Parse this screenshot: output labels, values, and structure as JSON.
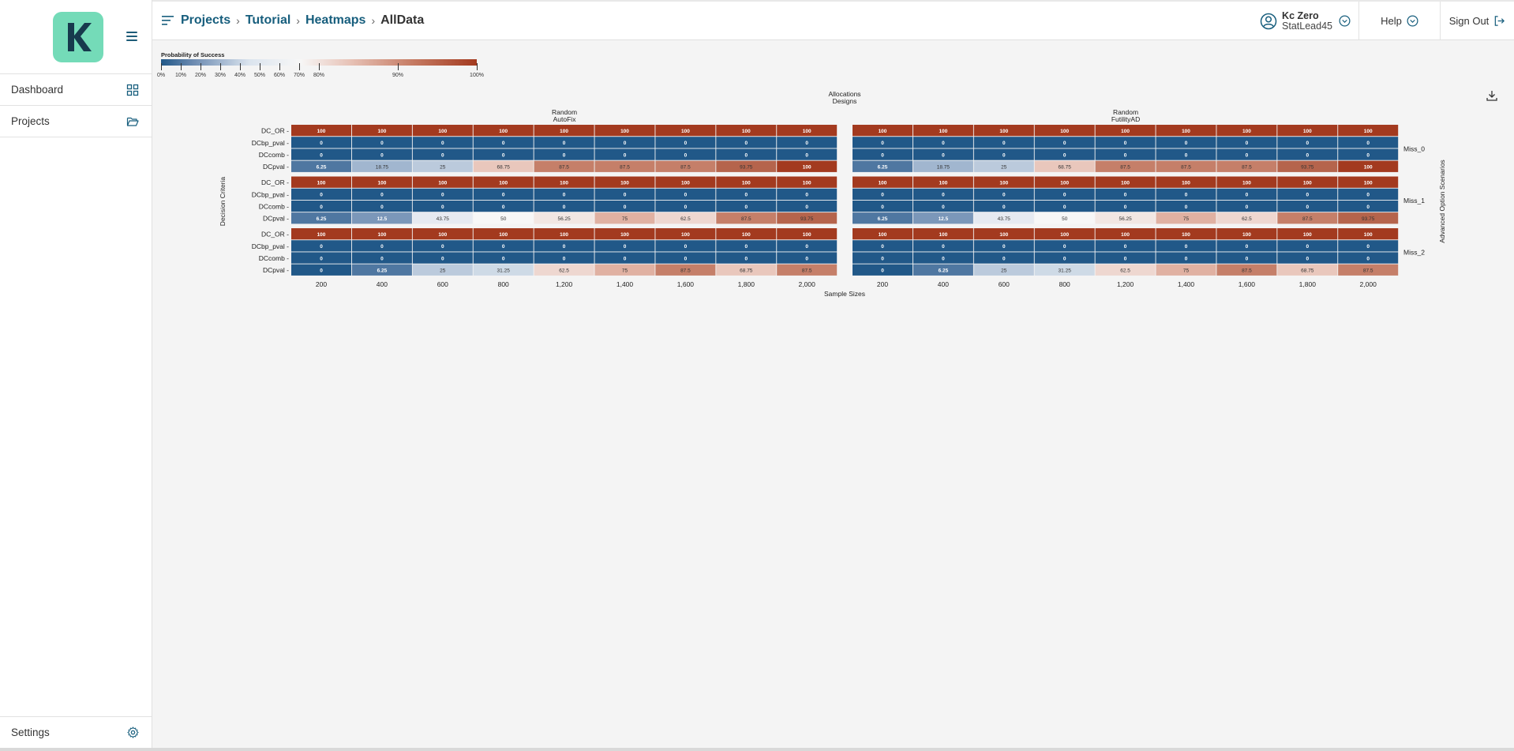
{
  "app": {
    "logo_letter": "K",
    "brand_color": "#74dbb8",
    "accent_color": "#175e7d"
  },
  "sidebar": {
    "items": [
      {
        "label": "Dashboard",
        "icon": "grid-icon"
      },
      {
        "label": "Projects",
        "icon": "folder-open-icon"
      }
    ],
    "settings_label": "Settings"
  },
  "header": {
    "breadcrumb": [
      "Projects",
      "Tutorial",
      "Heatmaps",
      "AllData"
    ],
    "user_name": "Kc Zero",
    "user_role": "StatLead45",
    "help_label": "Help",
    "signout_label": "Sign Out"
  },
  "chart_data": {
    "type": "heatmap",
    "legend": {
      "title": "Probability of Success",
      "ticks": [
        "0%",
        "10%",
        "20%",
        "30%",
        "40%",
        "50%",
        "60%",
        "70%",
        "80%",
        "90%",
        "100%"
      ],
      "colors": {
        "low": "#215888",
        "mid": "#f7f7f7",
        "high": "#a33a1f"
      }
    },
    "top_title": [
      "Allocations",
      "Designs"
    ],
    "panels": [
      {
        "allocation": "Random",
        "design": "AutoFix"
      },
      {
        "allocation": "Random",
        "design": "FutilityAD"
      }
    ],
    "x_label": "Sample Sizes",
    "x": [
      "200",
      "400",
      "600",
      "800",
      "1,200",
      "1,400",
      "1,600",
      "1,800",
      "2,000"
    ],
    "y_label": "Decision Criteria",
    "rows": [
      "DC_OR",
      "DCbp_pval",
      "DCcomb",
      "DCpval"
    ],
    "facet_label": "Advanced Option Scenarios",
    "facets": [
      {
        "name": "Miss_0",
        "values": [
          [
            [
              100,
              100,
              100,
              100,
              100,
              100,
              100,
              100,
              100
            ],
            [
              0,
              0,
              0,
              0,
              0,
              0,
              0,
              0,
              0
            ],
            [
              0,
              0,
              0,
              0,
              0,
              0,
              0,
              0,
              0
            ],
            [
              6.25,
              18.75,
              25,
              68.75,
              87.5,
              87.5,
              87.5,
              93.75,
              100
            ]
          ],
          [
            [
              100,
              100,
              100,
              100,
              100,
              100,
              100,
              100,
              100
            ],
            [
              0,
              0,
              0,
              0,
              0,
              0,
              0,
              0,
              0
            ],
            [
              0,
              0,
              0,
              0,
              0,
              0,
              0,
              0,
              0
            ],
            [
              6.25,
              18.75,
              25,
              68.75,
              87.5,
              87.5,
              87.5,
              93.75,
              100
            ]
          ]
        ]
      },
      {
        "name": "Miss_1",
        "values": [
          [
            [
              100,
              100,
              100,
              100,
              100,
              100,
              100,
              100,
              100
            ],
            [
              0,
              0,
              0,
              0,
              0,
              0,
              0,
              0,
              0
            ],
            [
              0,
              0,
              0,
              0,
              0,
              0,
              0,
              0,
              0
            ],
            [
              6.25,
              12.5,
              43.75,
              50,
              56.25,
              75,
              62.5,
              87.5,
              93.75
            ]
          ],
          [
            [
              100,
              100,
              100,
              100,
              100,
              100,
              100,
              100,
              100
            ],
            [
              0,
              0,
              0,
              0,
              0,
              0,
              0,
              0,
              0
            ],
            [
              0,
              0,
              0,
              0,
              0,
              0,
              0,
              0,
              0
            ],
            [
              6.25,
              12.5,
              43.75,
              50,
              56.25,
              75,
              62.5,
              87.5,
              93.75
            ]
          ]
        ]
      },
      {
        "name": "Miss_2",
        "values": [
          [
            [
              100,
              100,
              100,
              100,
              100,
              100,
              100,
              100,
              100
            ],
            [
              0,
              0,
              0,
              0,
              0,
              0,
              0,
              0,
              0
            ],
            [
              0,
              0,
              0,
              0,
              0,
              0,
              0,
              0,
              0
            ],
            [
              0,
              6.25,
              25,
              31.25,
              62.5,
              75,
              87.5,
              68.75,
              87.5
            ]
          ],
          [
            [
              100,
              100,
              100,
              100,
              100,
              100,
              100,
              100,
              100
            ],
            [
              0,
              0,
              0,
              0,
              0,
              0,
              0,
              0,
              0
            ],
            [
              0,
              0,
              0,
              0,
              0,
              0,
              0,
              0,
              0
            ],
            [
              0,
              6.25,
              25,
              31.25,
              62.5,
              75,
              87.5,
              68.75,
              87.5
            ]
          ]
        ]
      }
    ]
  }
}
